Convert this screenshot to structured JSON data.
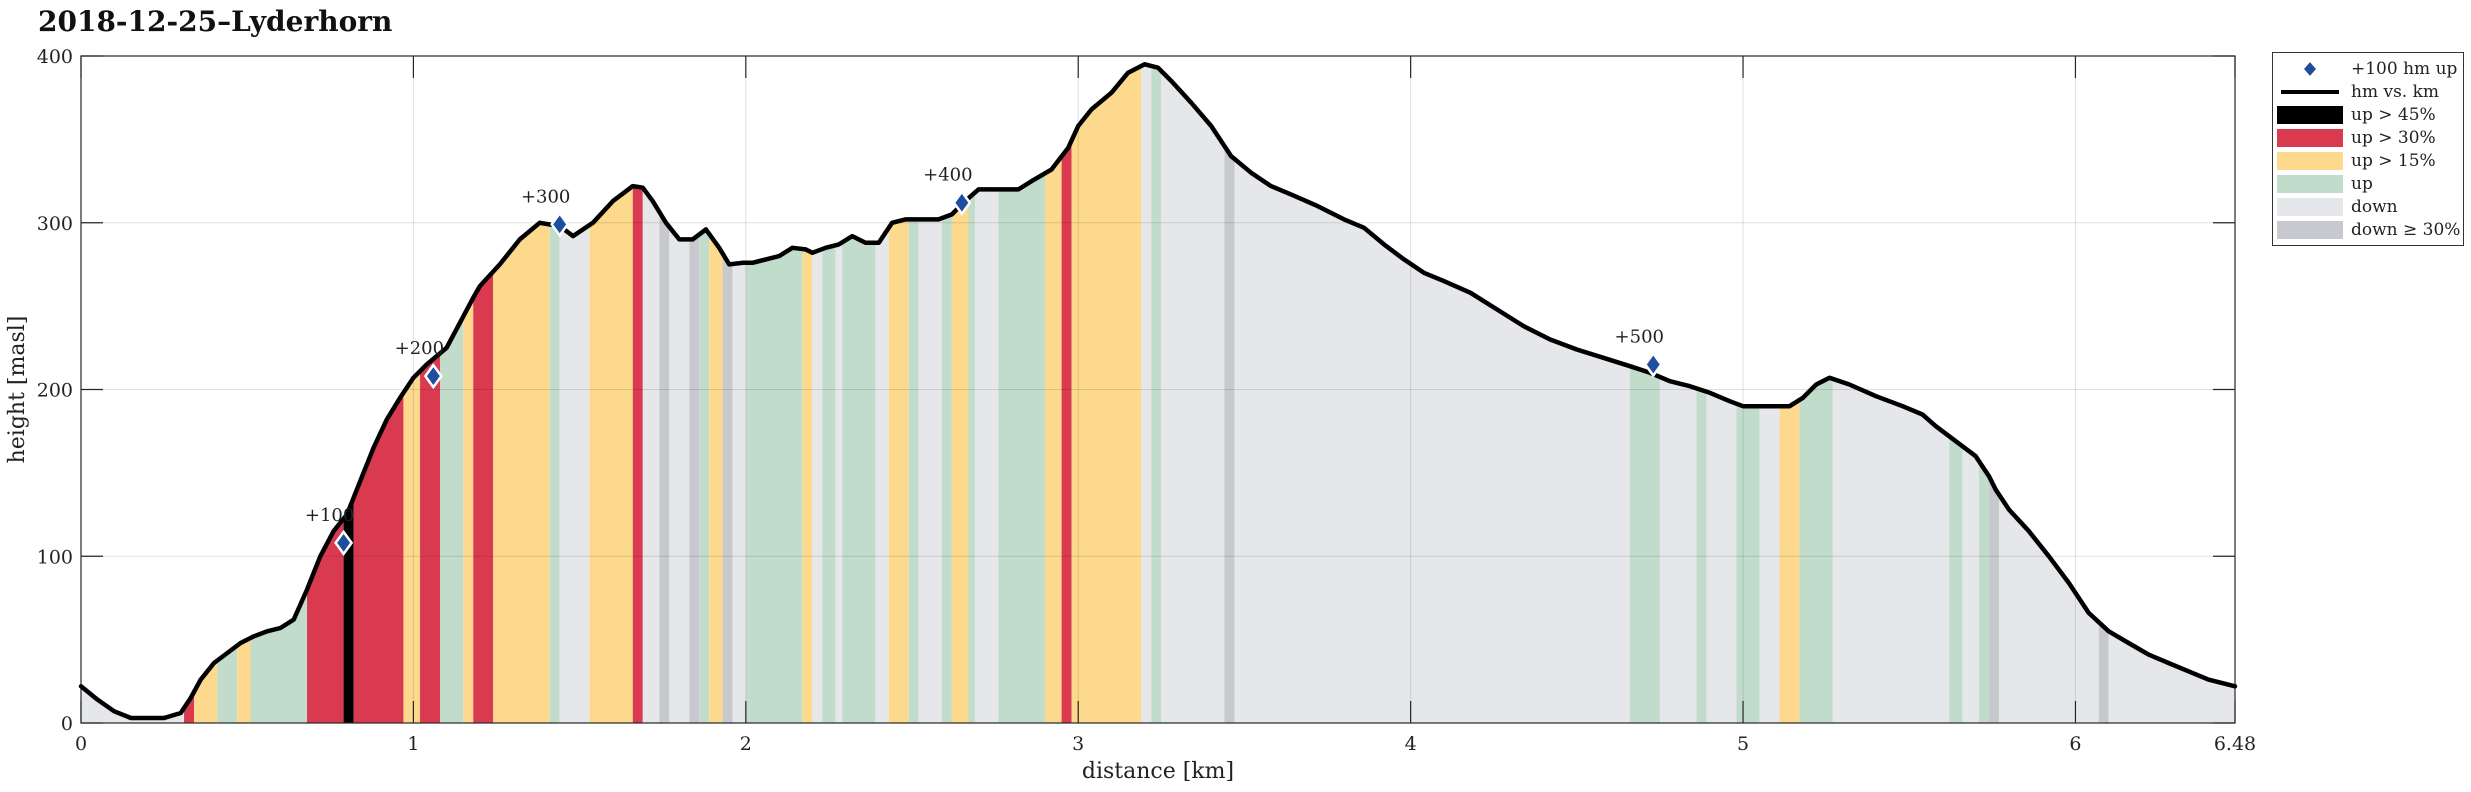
{
  "chart_data": {
    "type": "area",
    "title": "2018-12-25–Lyderhorn",
    "xlabel": "distance [km]",
    "ylabel": "height [masl]",
    "xlim": [
      0,
      6.48
    ],
    "ylim": [
      0,
      400
    ],
    "x_ticks": [
      "0",
      "1",
      "2",
      "3",
      "4",
      "5",
      "6",
      "6.48"
    ],
    "y_ticks": [
      "0",
      "100",
      "200",
      "300",
      "400"
    ],
    "grid": true,
    "legend_position": "outside-right",
    "legend": [
      {
        "label": "+100 hm up",
        "kind": "diamond",
        "color": "#1f4e9e"
      },
      {
        "label": "hm vs. km",
        "kind": "line",
        "color": "#000000"
      },
      {
        "label": "up > 45%",
        "kind": "patch",
        "color": "#000000"
      },
      {
        "label": "up > 30%",
        "kind": "patch",
        "color": "#d93a50"
      },
      {
        "label": "up > 15%",
        "kind": "patch",
        "color": "#fcd98d"
      },
      {
        "label": "up",
        "kind": "patch",
        "color": "#c1dccb"
      },
      {
        "label": "down",
        "kind": "patch",
        "color": "#e6e7ea"
      },
      {
        "label": "down ≥ 30%",
        "kind": "patch",
        "color": "#c7c9ce"
      }
    ],
    "series": [
      {
        "x": [
          0,
          0.05,
          0.1,
          0.15,
          0.2,
          0.25,
          0.3,
          0.33,
          0.36,
          0.4,
          0.44,
          0.48,
          0.52,
          0.56,
          0.6,
          0.64,
          0.68,
          0.72,
          0.76,
          0.8,
          0.84,
          0.88,
          0.92,
          0.96,
          1.0,
          1.04,
          1.07,
          1.1,
          1.14,
          1.18,
          1.2,
          1.26,
          1.32,
          1.38,
          1.44,
          1.48,
          1.54,
          1.6,
          1.66,
          1.69,
          1.72,
          1.76,
          1.8,
          1.84,
          1.88,
          1.92,
          1.95,
          1.99,
          2.02,
          2.06,
          2.1,
          2.14,
          2.18,
          2.2,
          2.24,
          2.28,
          2.32,
          2.36,
          2.4,
          2.44,
          2.48,
          2.52,
          2.58,
          2.62,
          2.66,
          2.7,
          2.74,
          2.78,
          2.82,
          2.86,
          2.92,
          2.97,
          3.0,
          3.04,
          3.1,
          3.15,
          3.2,
          3.24,
          3.28,
          3.34,
          3.4,
          3.46,
          3.52,
          3.58,
          3.64,
          3.72,
          3.8,
          3.86,
          3.92,
          3.98,
          4.04,
          4.1,
          4.18,
          4.26,
          4.34,
          4.42,
          4.5,
          4.58,
          4.66,
          4.72,
          4.78,
          4.84,
          4.9,
          4.96,
          5.0,
          5.06,
          5.1,
          5.14,
          5.18,
          5.22,
          5.26,
          5.32,
          5.4,
          5.48,
          5.54,
          5.58,
          5.62,
          5.66,
          5.7,
          5.74,
          5.76,
          5.8,
          5.86,
          5.92,
          5.98,
          6.04,
          6.1,
          6.16,
          6.22,
          6.28,
          6.34,
          6.4,
          6.48
        ],
        "y": [
          22,
          14,
          7,
          3,
          3,
          3,
          6,
          15,
          26,
          36,
          42,
          48,
          52,
          55,
          57,
          62,
          80,
          100,
          115,
          125,
          145,
          165,
          182,
          195,
          207,
          215,
          220,
          225,
          240,
          255,
          262,
          275,
          290,
          300,
          298,
          292,
          300,
          313,
          322,
          321,
          313,
          300,
          290,
          290,
          296,
          285,
          275,
          276,
          276,
          278,
          280,
          285,
          284,
          282,
          285,
          287,
          292,
          288,
          288,
          300,
          302,
          302,
          302,
          305,
          313,
          320,
          320,
          320,
          320,
          325,
          332,
          345,
          358,
          368,
          378,
          390,
          395,
          393,
          385,
          372,
          358,
          340,
          330,
          322,
          317,
          310,
          302,
          297,
          287,
          278,
          270,
          265,
          258,
          248,
          238,
          230,
          224,
          219,
          214,
          210,
          205,
          202,
          198,
          193,
          190,
          190,
          190,
          190,
          195,
          203,
          207,
          203,
          196,
          190,
          185,
          178,
          172,
          166,
          160,
          148,
          140,
          128,
          115,
          100,
          84,
          66,
          55,
          48,
          41,
          36,
          31,
          26,
          22
        ]
      }
    ],
    "segments": [
      {
        "x0": 0.0,
        "x1": 0.31,
        "class": "down"
      },
      {
        "x0": 0.31,
        "x1": 0.34,
        "class": "up > 30%"
      },
      {
        "x0": 0.34,
        "x1": 0.41,
        "class": "up > 15%"
      },
      {
        "x0": 0.41,
        "x1": 0.47,
        "class": "up"
      },
      {
        "x0": 0.47,
        "x1": 0.51,
        "class": "up > 15%"
      },
      {
        "x0": 0.51,
        "x1": 0.68,
        "class": "up"
      },
      {
        "x0": 0.68,
        "x1": 0.79,
        "class": "up > 30%"
      },
      {
        "x0": 0.79,
        "x1": 0.82,
        "class": "up > 45%"
      },
      {
        "x0": 0.82,
        "x1": 0.97,
        "class": "up > 30%"
      },
      {
        "x0": 0.97,
        "x1": 1.02,
        "class": "up > 15%"
      },
      {
        "x0": 1.02,
        "x1": 1.08,
        "class": "up > 30%"
      },
      {
        "x0": 1.08,
        "x1": 1.15,
        "class": "up"
      },
      {
        "x0": 1.15,
        "x1": 1.18,
        "class": "up > 15%"
      },
      {
        "x0": 1.18,
        "x1": 1.24,
        "class": "up > 30%"
      },
      {
        "x0": 1.24,
        "x1": 1.41,
        "class": "up > 15%"
      },
      {
        "x0": 1.41,
        "x1": 1.44,
        "class": "up"
      },
      {
        "x0": 1.44,
        "x1": 1.53,
        "class": "down"
      },
      {
        "x0": 1.53,
        "x1": 1.66,
        "class": "up > 15%"
      },
      {
        "x0": 1.66,
        "x1": 1.69,
        "class": "up > 30%"
      },
      {
        "x0": 1.69,
        "x1": 1.74,
        "class": "down"
      },
      {
        "x0": 1.74,
        "x1": 1.77,
        "class": "down ≥ 30%"
      },
      {
        "x0": 1.77,
        "x1": 1.83,
        "class": "down"
      },
      {
        "x0": 1.83,
        "x1": 1.86,
        "class": "down ≥ 30%"
      },
      {
        "x0": 1.86,
        "x1": 1.89,
        "class": "up"
      },
      {
        "x0": 1.89,
        "x1": 1.93,
        "class": "up > 15%"
      },
      {
        "x0": 1.93,
        "x1": 1.96,
        "class": "down ≥ 30%"
      },
      {
        "x0": 1.96,
        "x1": 2.0,
        "class": "down"
      },
      {
        "x0": 2.0,
        "x1": 2.17,
        "class": "up"
      },
      {
        "x0": 2.17,
        "x1": 2.2,
        "class": "up > 15%"
      },
      {
        "x0": 2.2,
        "x1": 2.23,
        "class": "down"
      },
      {
        "x0": 2.23,
        "x1": 2.27,
        "class": "up"
      },
      {
        "x0": 2.27,
        "x1": 2.29,
        "class": "down"
      },
      {
        "x0": 2.29,
        "x1": 2.39,
        "class": "up"
      },
      {
        "x0": 2.39,
        "x1": 2.43,
        "class": "down"
      },
      {
        "x0": 2.43,
        "x1": 2.49,
        "class": "up > 15%"
      },
      {
        "x0": 2.49,
        "x1": 2.52,
        "class": "up"
      },
      {
        "x0": 2.52,
        "x1": 2.59,
        "class": "down"
      },
      {
        "x0": 2.59,
        "x1": 2.62,
        "class": "up"
      },
      {
        "x0": 2.62,
        "x1": 2.67,
        "class": "up > 15%"
      },
      {
        "x0": 2.67,
        "x1": 2.69,
        "class": "up"
      },
      {
        "x0": 2.69,
        "x1": 2.76,
        "class": "down"
      },
      {
        "x0": 2.76,
        "x1": 2.9,
        "class": "up"
      },
      {
        "x0": 2.9,
        "x1": 2.95,
        "class": "up > 15%"
      },
      {
        "x0": 2.95,
        "x1": 2.98,
        "class": "up > 30%"
      },
      {
        "x0": 2.98,
        "x1": 3.19,
        "class": "up > 15%"
      },
      {
        "x0": 3.19,
        "x1": 3.22,
        "class": "down"
      },
      {
        "x0": 3.22,
        "x1": 3.25,
        "class": "up"
      },
      {
        "x0": 3.25,
        "x1": 3.44,
        "class": "down"
      },
      {
        "x0": 3.44,
        "x1": 3.47,
        "class": "down ≥ 30%"
      },
      {
        "x0": 3.47,
        "x1": 4.66,
        "class": "down"
      },
      {
        "x0": 4.66,
        "x1": 4.75,
        "class": "up"
      },
      {
        "x0": 4.75,
        "x1": 4.86,
        "class": "down"
      },
      {
        "x0": 4.86,
        "x1": 4.89,
        "class": "up"
      },
      {
        "x0": 4.89,
        "x1": 4.98,
        "class": "down"
      },
      {
        "x0": 4.98,
        "x1": 5.05,
        "class": "up"
      },
      {
        "x0": 5.05,
        "x1": 5.11,
        "class": "down"
      },
      {
        "x0": 5.11,
        "x1": 5.17,
        "class": "up > 15%"
      },
      {
        "x0": 5.17,
        "x1": 5.27,
        "class": "up"
      },
      {
        "x0": 5.27,
        "x1": 5.62,
        "class": "down"
      },
      {
        "x0": 5.62,
        "x1": 5.66,
        "class": "up"
      },
      {
        "x0": 5.66,
        "x1": 5.71,
        "class": "down"
      },
      {
        "x0": 5.71,
        "x1": 5.74,
        "class": "up"
      },
      {
        "x0": 5.74,
        "x1": 5.77,
        "class": "down ≥ 30%"
      },
      {
        "x0": 5.77,
        "x1": 6.07,
        "class": "down"
      },
      {
        "x0": 6.07,
        "x1": 6.1,
        "class": "down ≥ 30%"
      },
      {
        "x0": 6.1,
        "x1": 6.48,
        "class": "down"
      }
    ],
    "markers": [
      {
        "label": "+100",
        "x": 0.79,
        "y": 108
      },
      {
        "label": "+200",
        "x": 1.06,
        "y": 208
      },
      {
        "label": "+300",
        "x": 1.44,
        "y": 299
      },
      {
        "label": "+400",
        "x": 2.65,
        "y": 312
      },
      {
        "label": "+500",
        "x": 4.73,
        "y": 215
      }
    ]
  }
}
